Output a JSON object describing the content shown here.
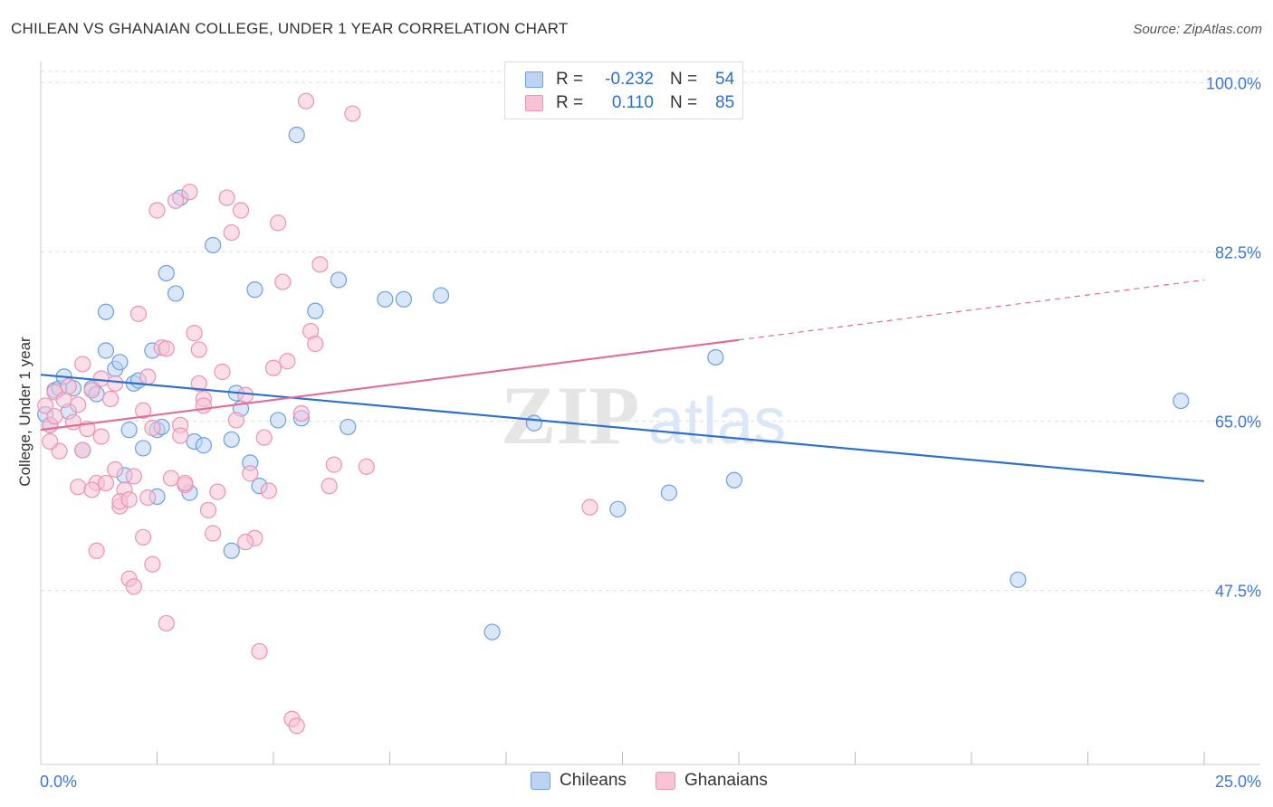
{
  "title": "CHILEAN VS GHANAIAN COLLEGE, UNDER 1 YEAR CORRELATION CHART",
  "source": "Source: ZipAtlas.com",
  "legend_stats": [
    {
      "r_label": "R =",
      "r_value": "-0.232",
      "n_label": "N =",
      "n_value": "54"
    },
    {
      "r_label": "R =",
      "r_value": "0.110",
      "n_label": "N =",
      "n_value": "85"
    }
  ],
  "watermark": {
    "zip": "ZIP",
    "atlas": "atlas"
  },
  "chart_data": {
    "type": "scatter",
    "title": "CHILEAN VS GHANAIAN COLLEGE, UNDER 1 YEAR CORRELATION CHART",
    "xlabel": "",
    "ylabel": "College, Under 1 year",
    "xlim": [
      0,
      25
    ],
    "ylim": [
      29.5,
      102
    ],
    "x_tick_labels": [
      {
        "value": 0,
        "label": "0.0%"
      },
      {
        "value": 25,
        "label": "25.0%"
      }
    ],
    "y_tick_labels": [
      {
        "value": 100,
        "label": "100.0%"
      },
      {
        "value": 82.5,
        "label": "82.5%"
      },
      {
        "value": 65,
        "label": "65.0%"
      },
      {
        "value": 47.5,
        "label": "47.5%"
      }
    ],
    "x_minor_ticks": [
      2.5,
      5,
      7.5,
      10,
      12.5,
      15,
      17.5,
      20,
      22.5,
      25
    ],
    "grid": true,
    "legend_position": "bottom-center",
    "series": [
      {
        "name": "Chileans",
        "color": "#6f9fe0",
        "fill": "#bcd3f3",
        "line_color": "#2a6fd1",
        "trend": {
          "x1": 0,
          "y1": 69.8,
          "x2": 25,
          "y2": 58.8,
          "dashed_from": null
        },
        "points": [
          [
            0.1,
            65.7
          ],
          [
            0.3,
            68.2
          ],
          [
            0.4,
            68.4
          ],
          [
            0.5,
            69.6
          ],
          [
            0.7,
            68.4
          ],
          [
            0.9,
            62.0
          ],
          [
            1.1,
            68.4
          ],
          [
            1.2,
            67.8
          ],
          [
            1.4,
            72.3
          ],
          [
            1.4,
            76.3
          ],
          [
            1.6,
            70.4
          ],
          [
            1.7,
            71.1
          ],
          [
            1.8,
            59.4
          ],
          [
            1.9,
            64.1
          ],
          [
            2.0,
            68.9
          ],
          [
            2.1,
            69.2
          ],
          [
            2.2,
            62.2
          ],
          [
            2.4,
            72.3
          ],
          [
            2.5,
            64.1
          ],
          [
            2.6,
            64.4
          ],
          [
            2.7,
            80.3
          ],
          [
            2.9,
            78.2
          ],
          [
            3.0,
            88.1
          ],
          [
            3.2,
            57.6
          ],
          [
            3.3,
            62.9
          ],
          [
            3.5,
            62.5
          ],
          [
            3.7,
            83.2
          ],
          [
            4.1,
            63.1
          ],
          [
            4.3,
            66.3
          ],
          [
            4.5,
            60.7
          ],
          [
            4.6,
            78.6
          ],
          [
            4.7,
            58.3
          ],
          [
            5.1,
            65.1
          ],
          [
            5.5,
            94.6
          ],
          [
            5.6,
            65.3
          ],
          [
            5.9,
            76.4
          ],
          [
            6.4,
            79.6
          ],
          [
            6.6,
            64.4
          ],
          [
            7.4,
            77.6
          ],
          [
            7.8,
            77.6
          ],
          [
            8.6,
            78.0
          ],
          [
            9.7,
            43.2
          ],
          [
            10.6,
            64.8
          ],
          [
            12.4,
            55.9
          ],
          [
            13.5,
            57.6
          ],
          [
            14.5,
            71.6
          ],
          [
            14.9,
            58.9
          ],
          [
            21.0,
            48.6
          ],
          [
            24.5,
            67.1
          ],
          [
            4.1,
            51.6
          ],
          [
            4.2,
            67.9
          ],
          [
            2.5,
            57.2
          ],
          [
            0.2,
            64.6
          ],
          [
            0.6,
            66.0
          ]
        ]
      },
      {
        "name": "Ghanaians",
        "color": "#ee92b1",
        "fill": "#f8c3d5",
        "line_color": "#e36b97",
        "trend": {
          "x1": 0,
          "y1": 64.1,
          "x2": 25,
          "y2": 79.6,
          "dashed_from": 15
        },
        "points": [
          [
            0.1,
            66.6
          ],
          [
            0.2,
            64.6
          ],
          [
            0.3,
            68.0
          ],
          [
            0.4,
            61.9
          ],
          [
            0.5,
            67.2
          ],
          [
            0.6,
            68.6
          ],
          [
            0.7,
            64.9
          ],
          [
            0.8,
            58.2
          ],
          [
            0.9,
            70.9
          ],
          [
            1.0,
            64.2
          ],
          [
            1.1,
            68.2
          ],
          [
            1.2,
            58.6
          ],
          [
            1.2,
            51.6
          ],
          [
            1.3,
            69.4
          ],
          [
            1.4,
            58.6
          ],
          [
            1.5,
            67.3
          ],
          [
            1.6,
            68.9
          ],
          [
            1.7,
            56.2
          ],
          [
            1.8,
            57.9
          ],
          [
            1.9,
            48.7
          ],
          [
            2.0,
            59.3
          ],
          [
            2.1,
            76.1
          ],
          [
            2.2,
            66.1
          ],
          [
            2.3,
            69.6
          ],
          [
            2.4,
            64.3
          ],
          [
            2.5,
            86.8
          ],
          [
            2.6,
            72.6
          ],
          [
            2.7,
            72.5
          ],
          [
            2.8,
            59.1
          ],
          [
            2.9,
            87.8
          ],
          [
            3.0,
            64.6
          ],
          [
            3.1,
            58.4
          ],
          [
            3.2,
            88.7
          ],
          [
            3.3,
            74.1
          ],
          [
            3.4,
            68.9
          ],
          [
            3.5,
            67.3
          ],
          [
            3.6,
            55.8
          ],
          [
            3.7,
            53.4
          ],
          [
            3.8,
            57.7
          ],
          [
            3.9,
            70.1
          ],
          [
            4.0,
            88.1
          ],
          [
            4.1,
            84.5
          ],
          [
            4.2,
            65.1
          ],
          [
            4.3,
            86.8
          ],
          [
            4.4,
            67.7
          ],
          [
            4.5,
            59.6
          ],
          [
            4.6,
            52.9
          ],
          [
            4.7,
            41.2
          ],
          [
            4.8,
            63.3
          ],
          [
            4.9,
            57.8
          ],
          [
            5.0,
            70.5
          ],
          [
            5.1,
            85.5
          ],
          [
            5.2,
            79.4
          ],
          [
            5.3,
            71.2
          ],
          [
            5.4,
            34.2
          ],
          [
            5.5,
            33.5
          ],
          [
            5.6,
            65.8
          ],
          [
            5.7,
            98.1
          ],
          [
            5.8,
            74.3
          ],
          [
            5.9,
            73.0
          ],
          [
            6.0,
            81.2
          ],
          [
            6.2,
            58.3
          ],
          [
            6.7,
            96.8
          ],
          [
            7.0,
            60.3
          ],
          [
            11.8,
            56.1
          ],
          [
            0.9,
            62.0
          ],
          [
            1.1,
            57.9
          ],
          [
            1.6,
            60.0
          ],
          [
            1.7,
            56.7
          ],
          [
            2.0,
            47.9
          ],
          [
            2.2,
            53.0
          ],
          [
            2.4,
            50.2
          ],
          [
            2.7,
            44.1
          ],
          [
            3.1,
            58.6
          ],
          [
            3.4,
            72.4
          ],
          [
            3.5,
            66.6
          ],
          [
            0.3,
            65.5
          ],
          [
            0.8,
            66.7
          ],
          [
            1.3,
            63.4
          ],
          [
            1.9,
            56.9
          ],
          [
            2.3,
            57.1
          ],
          [
            3.0,
            63.5
          ],
          [
            4.4,
            52.5
          ],
          [
            6.3,
            60.5
          ],
          [
            0.2,
            62.9
          ]
        ]
      }
    ]
  }
}
